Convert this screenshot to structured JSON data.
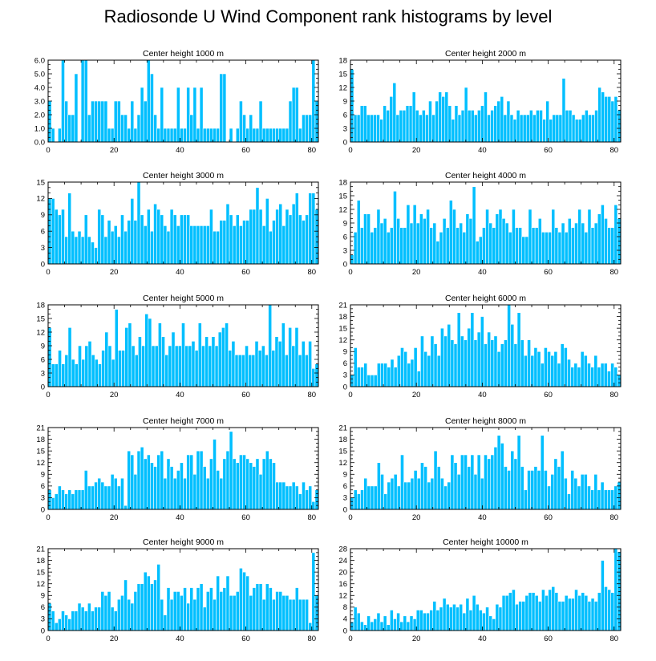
{
  "figure": {
    "title": "Radiosonde U Wind Component rank histograms by level"
  },
  "chart_data": [
    {
      "type": "bar",
      "title": "Center height 1000 m",
      "ylim": [
        0,
        6
      ],
      "yticks": [
        "0.0",
        "1.0",
        "2.0",
        "3.0",
        "4.0",
        "5.0",
        "6.0"
      ],
      "xticks": [
        0,
        20,
        40,
        60,
        80
      ],
      "xlim": [
        0,
        82
      ],
      "values": [
        3,
        1,
        0,
        1,
        6,
        3,
        2,
        2,
        5,
        0,
        6,
        6,
        2,
        3,
        3,
        3,
        3,
        3,
        1,
        1,
        3,
        3,
        2,
        2,
        1,
        3,
        1,
        2,
        4,
        3,
        6,
        5,
        2,
        1,
        4,
        1,
        1,
        1,
        1,
        4,
        1,
        1,
        4,
        2,
        4,
        1,
        4,
        1,
        1,
        1,
        1,
        1,
        5,
        5,
        0,
        1,
        0,
        1,
        3,
        2,
        1,
        2,
        1,
        1,
        3,
        1,
        1,
        1,
        1,
        1,
        1,
        1,
        1,
        3,
        4,
        4,
        1,
        2,
        2,
        2,
        6,
        3
      ]
    },
    {
      "type": "bar",
      "title": "Center height 2000 m",
      "ylim": [
        0,
        18
      ],
      "yticks": [
        "0",
        "3",
        "6",
        "9",
        "12",
        "15",
        "18"
      ],
      "xticks": [
        0,
        20,
        40,
        60,
        80
      ],
      "xlim": [
        0,
        82
      ],
      "values": [
        16,
        6,
        6,
        8,
        8,
        6,
        6,
        6,
        6,
        5,
        8,
        7,
        10,
        13,
        6,
        7,
        7,
        8,
        8,
        11,
        7,
        6,
        7,
        6,
        9,
        6,
        9,
        11,
        10,
        11,
        8,
        5,
        8,
        6,
        7,
        12,
        7,
        7,
        6,
        7,
        8,
        11,
        6,
        7,
        8,
        9,
        10,
        6,
        9,
        6,
        5,
        7,
        6,
        6,
        6,
        7,
        6,
        7,
        7,
        5,
        9,
        5,
        6,
        6,
        6,
        14,
        7,
        7,
        6,
        5,
        5,
        6,
        7,
        6,
        6,
        7,
        12,
        11,
        10,
        10,
        9,
        10,
        7
      ]
    },
    {
      "type": "bar",
      "title": "Center height 3000 m",
      "ylim": [
        0,
        15
      ],
      "yticks": [
        "0",
        "3",
        "6",
        "9",
        "12",
        "15"
      ],
      "xticks": [
        0,
        20,
        40,
        60,
        80
      ],
      "xlim": [
        0,
        82
      ],
      "values": [
        12,
        12,
        10,
        9,
        10,
        5,
        13,
        6,
        5,
        6,
        5,
        9,
        5,
        4,
        3,
        10,
        9,
        5,
        8,
        6,
        7,
        5,
        9,
        6,
        8,
        12,
        8,
        15,
        9,
        7,
        10,
        6,
        11,
        10,
        9,
        7,
        6,
        10,
        9,
        7,
        9,
        9,
        9,
        7,
        7,
        7,
        7,
        7,
        7,
        10,
        6,
        6,
        8,
        8,
        11,
        9,
        7,
        9,
        7,
        8,
        8,
        10,
        10,
        14,
        10,
        7,
        12,
        6,
        8,
        10,
        11,
        7,
        10,
        9,
        11,
        13,
        9,
        8,
        9,
        13,
        13,
        10
      ]
    },
    {
      "type": "bar",
      "title": "Center height 4000 m",
      "ylim": [
        0,
        18
      ],
      "yticks": [
        "0",
        "3",
        "6",
        "9",
        "12",
        "15",
        "18"
      ],
      "xticks": [
        0,
        20,
        40,
        60,
        80
      ],
      "xlim": [
        0,
        82
      ],
      "values": [
        2,
        7,
        14,
        8,
        11,
        11,
        7,
        8,
        12,
        9,
        10,
        7,
        8,
        16,
        10,
        8,
        8,
        13,
        9,
        13,
        9,
        11,
        10,
        12,
        8,
        9,
        5,
        7,
        10,
        8,
        14,
        12,
        8,
        9,
        7,
        11,
        10,
        17,
        5,
        6,
        8,
        12,
        9,
        8,
        11,
        12,
        10,
        9,
        7,
        12,
        8,
        8,
        6,
        6,
        12,
        8,
        8,
        10,
        7,
        7,
        7,
        12,
        8,
        7,
        9,
        7,
        10,
        8,
        9,
        12,
        9,
        7,
        12,
        8,
        9,
        11,
        13,
        10,
        8,
        8,
        13,
        10
      ]
    },
    {
      "type": "bar",
      "title": "Center height 5000 m",
      "ylim": [
        0,
        18
      ],
      "yticks": [
        "0",
        "3",
        "6",
        "9",
        "12",
        "15",
        "18"
      ],
      "xticks": [
        0,
        20,
        40,
        60,
        80
      ],
      "xlim": [
        0,
        82
      ],
      "values": [
        13,
        5,
        5,
        8,
        5,
        7,
        13,
        6,
        5,
        9,
        6,
        9,
        10,
        7,
        6,
        5,
        8,
        12,
        9,
        6,
        17,
        8,
        8,
        13,
        14,
        9,
        7,
        11,
        9,
        16,
        15,
        9,
        9,
        14,
        11,
        7,
        9,
        12,
        9,
        9,
        14,
        9,
        9,
        10,
        8,
        14,
        9,
        11,
        9,
        11,
        9,
        12,
        13,
        14,
        8,
        10,
        7,
        7,
        7,
        9,
        7,
        7,
        10,
        8,
        9,
        7,
        18,
        8,
        11,
        10,
        14,
        7,
        13,
        9,
        13,
        7,
        10,
        7,
        10,
        4,
        5
      ]
    },
    {
      "type": "bar",
      "title": "Center height 6000 m",
      "ylim": [
        0,
        21
      ],
      "yticks": [
        "0",
        "3",
        "6",
        "9",
        "12",
        "15",
        "18",
        "21"
      ],
      "xticks": [
        0,
        20,
        40,
        60,
        80
      ],
      "xlim": [
        0,
        82
      ],
      "values": [
        3,
        10,
        5,
        5,
        6,
        3,
        3,
        3,
        6,
        6,
        6,
        5,
        7,
        5,
        8,
        10,
        9,
        6,
        7,
        10,
        4,
        13,
        9,
        8,
        13,
        11,
        8,
        15,
        13,
        16,
        12,
        11,
        19,
        13,
        12,
        15,
        19,
        12,
        14,
        18,
        11,
        14,
        12,
        13,
        9,
        11,
        12,
        21,
        16,
        11,
        19,
        12,
        8,
        12,
        8,
        10,
        9,
        6,
        10,
        9,
        8,
        9,
        6,
        11,
        10,
        7,
        5,
        6,
        5,
        9,
        8,
        6,
        5,
        8,
        5,
        6,
        6,
        4,
        6,
        5,
        3
      ]
    },
    {
      "type": "bar",
      "title": "Center height 7000 m",
      "ylim": [
        0,
        21
      ],
      "yticks": [
        "0",
        "3",
        "6",
        "9",
        "12",
        "15",
        "18",
        "21"
      ],
      "xticks": [
        0,
        20,
        40,
        60,
        80
      ],
      "xlim": [
        0,
        82
      ],
      "values": [
        5,
        3,
        4,
        6,
        5,
        4,
        5,
        4,
        5,
        5,
        5,
        10,
        6,
        6,
        7,
        8,
        7,
        6,
        6,
        9,
        8,
        6,
        8,
        1,
        15,
        14,
        9,
        15,
        16,
        13,
        14,
        12,
        11,
        14,
        15,
        8,
        13,
        11,
        8,
        10,
        12,
        8,
        14,
        14,
        9,
        15,
        15,
        11,
        8,
        13,
        18,
        10,
        8,
        13,
        15,
        20,
        13,
        12,
        14,
        14,
        13,
        12,
        11,
        13,
        9,
        13,
        15,
        13,
        12,
        7,
        7,
        7,
        6,
        6,
        7,
        6,
        4,
        7,
        5,
        6,
        2,
        5
      ]
    },
    {
      "type": "bar",
      "title": "Center height 8000 m",
      "ylim": [
        0,
        21
      ],
      "yticks": [
        "0",
        "3",
        "6",
        "9",
        "12",
        "15",
        "18",
        "21"
      ],
      "xticks": [
        0,
        20,
        40,
        60,
        80
      ],
      "xlim": [
        0,
        82
      ],
      "values": [
        3,
        5,
        4,
        5,
        8,
        6,
        6,
        6,
        12,
        9,
        4,
        7,
        8,
        9,
        6,
        14,
        7,
        7,
        8,
        10,
        8,
        12,
        11,
        7,
        8,
        15,
        11,
        8,
        6,
        7,
        14,
        12,
        9,
        14,
        14,
        11,
        14,
        9,
        14,
        8,
        14,
        13,
        14,
        16,
        19,
        17,
        11,
        10,
        15,
        13,
        19,
        11,
        5,
        10,
        10,
        11,
        10,
        19,
        10,
        6,
        9,
        13,
        11,
        15,
        8,
        4,
        10,
        8,
        6,
        9,
        9,
        6,
        5,
        9,
        5,
        7,
        5,
        5,
        5,
        6,
        7
      ]
    },
    {
      "type": "bar",
      "title": "Center height 9000 m",
      "ylim": [
        0,
        21
      ],
      "yticks": [
        "0",
        "3",
        "6",
        "9",
        "12",
        "15",
        "18",
        "21"
      ],
      "xticks": [
        0,
        20,
        40,
        60,
        80
      ],
      "xlim": [
        0,
        82
      ],
      "values": [
        7,
        5,
        2,
        3,
        5,
        4,
        3,
        5,
        5,
        7,
        6,
        5,
        7,
        5,
        6,
        6,
        10,
        9,
        10,
        6,
        5,
        8,
        9,
        13,
        8,
        7,
        10,
        12,
        12,
        15,
        14,
        12,
        13,
        17,
        8,
        4,
        11,
        8,
        10,
        10,
        9,
        11,
        7,
        11,
        8,
        11,
        12,
        6,
        10,
        11,
        8,
        14,
        10,
        11,
        14,
        9,
        9,
        10,
        16,
        15,
        14,
        9,
        11,
        12,
        12,
        8,
        12,
        11,
        8,
        10,
        10,
        9,
        9,
        8,
        8,
        11,
        8,
        8,
        8,
        2,
        20,
        9
      ]
    },
    {
      "type": "bar",
      "title": "Center height 10000 m",
      "ylim": [
        0,
        28
      ],
      "yticks": [
        "0",
        "4",
        "8",
        "12",
        "16",
        "20",
        "24",
        "28"
      ],
      "xticks": [
        0,
        20,
        40,
        60,
        80
      ],
      "xlim": [
        0,
        82
      ],
      "values": [
        3,
        8,
        6,
        3,
        2,
        5,
        3,
        4,
        6,
        3,
        5,
        2,
        7,
        4,
        6,
        3,
        5,
        3,
        5,
        4,
        7,
        7,
        6,
        6,
        7,
        10,
        7,
        8,
        11,
        9,
        8,
        9,
        8,
        9,
        6,
        11,
        7,
        12,
        9,
        7,
        6,
        8,
        5,
        4,
        9,
        8,
        12,
        12,
        13,
        14,
        9,
        10,
        10,
        12,
        13,
        13,
        12,
        10,
        14,
        12,
        14,
        15,
        13,
        10,
        10,
        12,
        11,
        11,
        14,
        12,
        13,
        12,
        10,
        11,
        10,
        13,
        24,
        15,
        14,
        13,
        28,
        27
      ]
    }
  ]
}
